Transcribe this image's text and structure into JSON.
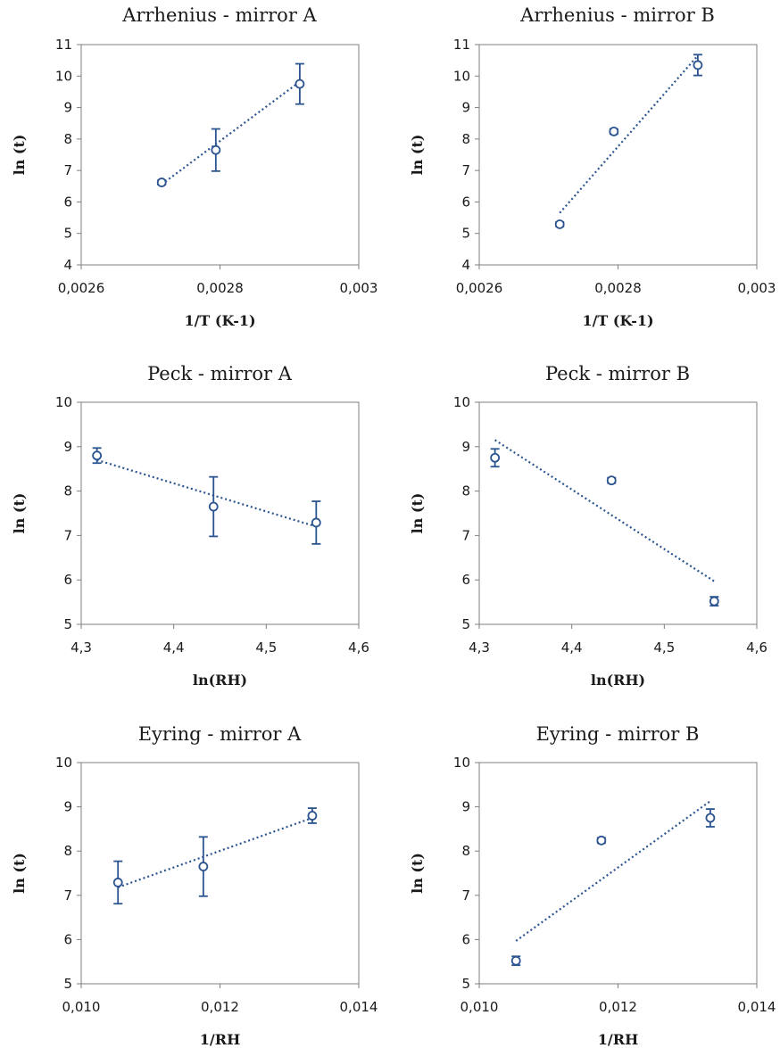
{
  "chart_data": [
    {
      "type": "scatter",
      "title": "Arrhenius - mirror A",
      "xlabel": "1/T  (K-1)",
      "ylabel": "ln (t)",
      "xlim": [
        0.0026,
        0.003
      ],
      "ylim": [
        4,
        11
      ],
      "xticks": [
        "0,0026",
        "0,0028",
        "0,003"
      ],
      "yticks": [
        "4",
        "5",
        "6",
        "7",
        "8",
        "9",
        "10",
        "11"
      ],
      "points": [
        {
          "x": 0.002716,
          "y": 6.62,
          "err": 0.07
        },
        {
          "x": 0.002794,
          "y": 7.65,
          "err": 0.67
        },
        {
          "x": 0.002915,
          "y": 9.75,
          "err": 0.64
        }
      ],
      "trendline": {
        "x": [
          0.002716,
          0.002915
        ],
        "y": [
          6.56,
          9.82
        ]
      }
    },
    {
      "type": "scatter",
      "title": "Arrhenius - mirror B",
      "xlabel": "1/T  (K-1)",
      "ylabel": "ln (t)",
      "xlim": [
        0.0026,
        0.003
      ],
      "ylim": [
        4,
        11
      ],
      "xticks": [
        "0,0026",
        "0,0028",
        "0,003"
      ],
      "yticks": [
        "4",
        "5",
        "6",
        "7",
        "8",
        "9",
        "10",
        "11"
      ],
      "points": [
        {
          "x": 0.002716,
          "y": 5.29,
          "err": 0.07
        },
        {
          "x": 0.002794,
          "y": 8.24,
          "err": 0.08
        },
        {
          "x": 0.002915,
          "y": 10.35,
          "err": 0.33
        }
      ],
      "trendline": {
        "x": [
          0.002716,
          0.002915
        ],
        "y": [
          5.65,
          10.65
        ]
      }
    },
    {
      "type": "scatter",
      "title": "Peck - mirror A",
      "xlabel": "ln(RH)",
      "ylabel": "ln (t)",
      "xlim": [
        4.3,
        4.6
      ],
      "ylim": [
        5,
        10
      ],
      "xticks": [
        "4,3",
        "4,4",
        "4,5",
        "4,6"
      ],
      "yticks": [
        "5",
        "6",
        "7",
        "8",
        "9",
        "10"
      ],
      "points": [
        {
          "x": 4.317,
          "y": 8.8,
          "err": 0.17
        },
        {
          "x": 4.443,
          "y": 7.65,
          "err": 0.67
        },
        {
          "x": 4.554,
          "y": 7.29,
          "err": 0.48
        }
      ],
      "trendline": {
        "x": [
          4.317,
          4.554
        ],
        "y": [
          8.7,
          7.2
        ]
      }
    },
    {
      "type": "scatter",
      "title": "Peck - mirror B",
      "xlabel": "ln(RH)",
      "ylabel": "ln (t)",
      "xlim": [
        4.3,
        4.6
      ],
      "ylim": [
        5,
        10
      ],
      "xticks": [
        "4,3",
        "4,4",
        "4,5",
        "4,6"
      ],
      "yticks": [
        "5",
        "6",
        "7",
        "8",
        "9",
        "10"
      ],
      "points": [
        {
          "x": 4.317,
          "y": 8.75,
          "err": 0.2
        },
        {
          "x": 4.443,
          "y": 8.24,
          "err": 0.06
        },
        {
          "x": 4.554,
          "y": 5.52,
          "err": 0.1
        }
      ],
      "trendline": {
        "x": [
          4.317,
          4.554
        ],
        "y": [
          9.15,
          5.97
        ]
      }
    },
    {
      "type": "scatter",
      "title": "Eyring - mirror A",
      "xlabel": "1/RH",
      "ylabel": "ln (t)",
      "xlim": [
        0.01,
        0.014
      ],
      "ylim": [
        5,
        10
      ],
      "xticks": [
        "0,010",
        "0,012",
        "0,014"
      ],
      "yticks": [
        "5",
        "6",
        "7",
        "8",
        "9",
        "10"
      ],
      "points": [
        {
          "x": 0.01053,
          "y": 7.29,
          "err": 0.48
        },
        {
          "x": 0.01176,
          "y": 7.65,
          "err": 0.67
        },
        {
          "x": 0.01333,
          "y": 8.8,
          "err": 0.17
        }
      ],
      "trendline": {
        "x": [
          0.01053,
          0.01333
        ],
        "y": [
          7.18,
          8.75
        ]
      }
    },
    {
      "type": "scatter",
      "title": "Eyring - mirror B",
      "xlabel": "1/RH",
      "ylabel": "ln (t)",
      "xlim": [
        0.01,
        0.014
      ],
      "ylim": [
        5,
        10
      ],
      "xticks": [
        "0,010",
        "0,012",
        "0,014"
      ],
      "yticks": [
        "5",
        "6",
        "7",
        "8",
        "9",
        "10"
      ],
      "points": [
        {
          "x": 0.01053,
          "y": 5.52,
          "err": 0.1
        },
        {
          "x": 0.01176,
          "y": 8.24,
          "err": 0.06
        },
        {
          "x": 0.01333,
          "y": 8.75,
          "err": 0.2
        }
      ],
      "trendline": {
        "x": [
          0.01053,
          0.01333
        ],
        "y": [
          5.97,
          9.13
        ]
      }
    }
  ]
}
